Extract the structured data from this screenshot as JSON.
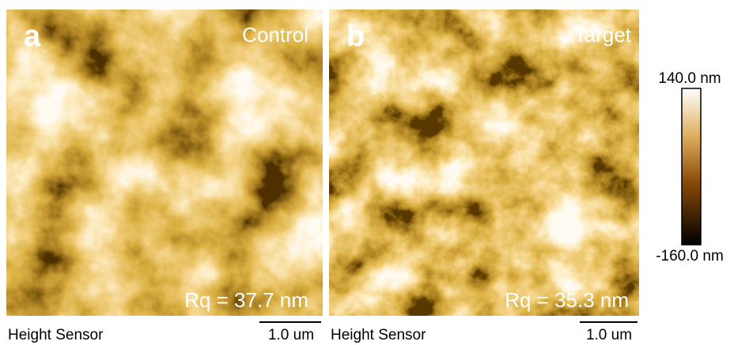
{
  "panels": [
    {
      "label": "a",
      "title": "Control",
      "roughness": "Rq = 37.7 nm",
      "sensor_label": "Height Sensor",
      "scale_label": "1.0 um"
    },
    {
      "label": "b",
      "title": "Target",
      "roughness": "Rq = 35.3 nm",
      "sensor_label": "Height Sensor",
      "scale_label": "1.0 um"
    }
  ],
  "colorbar": {
    "max_label": "140.0 nm",
    "min_label": "-160.0 nm"
  }
}
